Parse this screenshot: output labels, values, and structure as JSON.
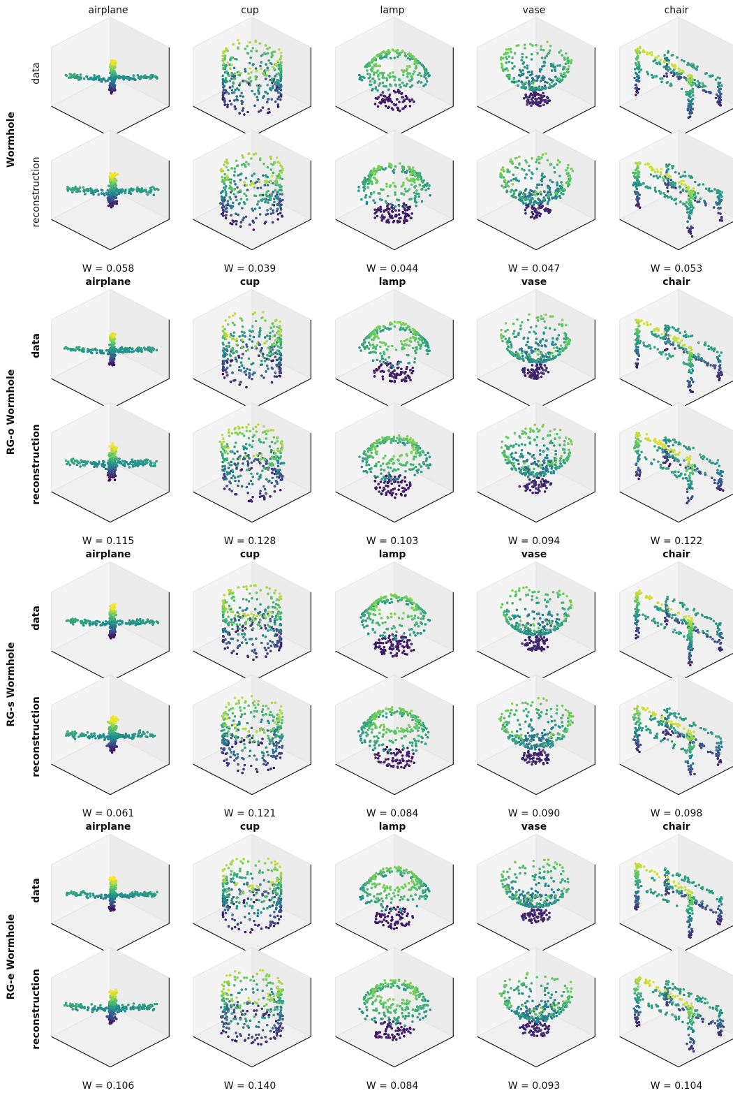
{
  "blocks": [
    {
      "method": "Wormhole",
      "columns": [
        "airplane",
        "cup",
        "lamp",
        "vase",
        "chair"
      ],
      "rows": [
        "data",
        "reconstruction"
      ],
      "w_labels": [
        "W = 0.058",
        "W = 0.039",
        "W = 0.044",
        "W = 0.047",
        "W = 0.053"
      ]
    },
    {
      "method": "RG-o Wormhole",
      "columns": [
        "airplane",
        "cup",
        "lamp",
        "vase",
        "chair"
      ],
      "rows": [
        "data",
        "reconstruction"
      ],
      "w_labels": [
        "W = 0.115",
        "W = 0.128",
        "W = 0.103",
        "W = 0.094",
        "W = 0.122"
      ]
    },
    {
      "method": "RG-s Wormhole",
      "columns": [
        "airplane",
        "cup",
        "lamp",
        "vase",
        "chair"
      ],
      "rows": [
        "data",
        "reconstruction"
      ],
      "w_labels": [
        "W = 0.061",
        "W = 0.121",
        "W = 0.084",
        "W = 0.090",
        "W = 0.098"
      ]
    },
    {
      "method": "RG-e Wormhole",
      "columns": [
        "airplane",
        "cup",
        "lamp",
        "vase",
        "chair"
      ],
      "rows": [
        "data",
        "reconstruction"
      ],
      "w_labels": [
        "W = 0.106",
        "W = 0.140",
        "W = 0.084",
        "W = 0.093",
        "W = 0.104"
      ]
    }
  ]
}
